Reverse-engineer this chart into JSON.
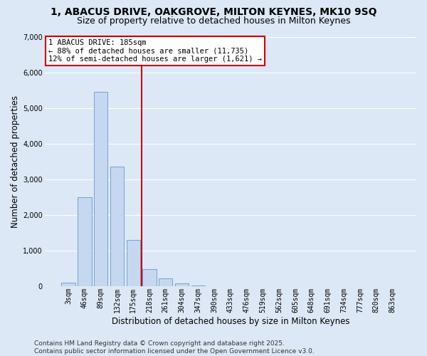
{
  "title_line1": "1, ABACUS DRIVE, OAKGROVE, MILTON KEYNES, MK10 9SQ",
  "title_line2": "Size of property relative to detached houses in Milton Keynes",
  "xlabel": "Distribution of detached houses by size in Milton Keynes",
  "ylabel": "Number of detached properties",
  "footer_line1": "Contains HM Land Registry data © Crown copyright and database right 2025.",
  "footer_line2": "Contains public sector information licensed under the Open Government Licence v3.0.",
  "bar_labels": [
    "3sqm",
    "46sqm",
    "89sqm",
    "132sqm",
    "175sqm",
    "218sqm",
    "261sqm",
    "304sqm",
    "347sqm",
    "390sqm",
    "433sqm",
    "476sqm",
    "519sqm",
    "562sqm",
    "605sqm",
    "648sqm",
    "691sqm",
    "734sqm",
    "777sqm",
    "820sqm",
    "863sqm"
  ],
  "bar_values": [
    100,
    2500,
    5450,
    3350,
    1300,
    480,
    220,
    80,
    30,
    0,
    0,
    0,
    0,
    0,
    0,
    0,
    0,
    0,
    0,
    0,
    0
  ],
  "bar_color": "#c5d8f0",
  "bar_edge_color": "#6699cc",
  "vline_color": "#cc0000",
  "vline_index": 4.5,
  "annotation_text": "1 ABACUS DRIVE: 185sqm\n← 88% of detached houses are smaller (11,735)\n12% of semi-detached houses are larger (1,621) →",
  "ylim_max": 7000,
  "ytick_step": 1000,
  "bg_color": "#dce8f5",
  "grid_color": "#ffffff",
  "title_fontsize": 10,
  "subtitle_fontsize": 9,
  "axis_label_fontsize": 8.5,
  "tick_fontsize": 7,
  "footer_fontsize": 6.5
}
